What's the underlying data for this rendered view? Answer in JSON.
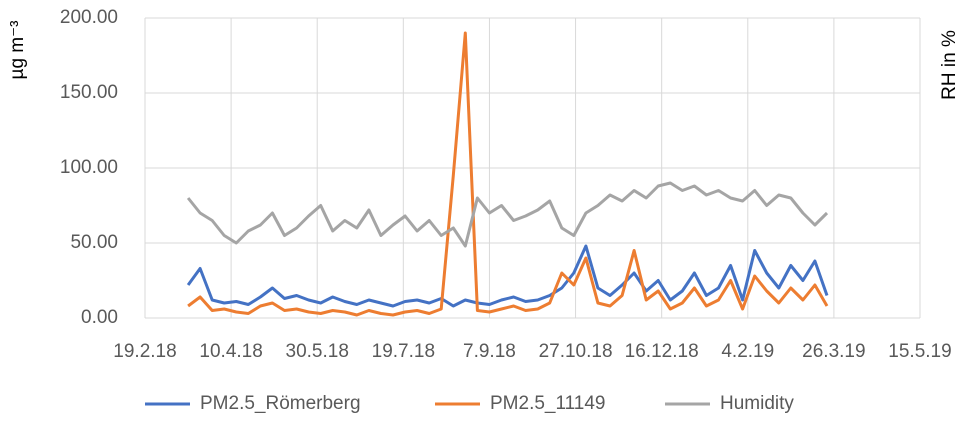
{
  "chart_data": {
    "type": "line",
    "y_label": "µg m⁻³",
    "y2_label": "RH in %",
    "x": [
      "2018-03-16",
      "2018-03-23",
      "2018-03-30",
      "2018-04-06",
      "2018-04-13",
      "2018-04-20",
      "2018-04-27",
      "2018-05-04",
      "2018-05-11",
      "2018-05-18",
      "2018-05-25",
      "2018-06-01",
      "2018-06-08",
      "2018-06-15",
      "2018-06-22",
      "2018-06-29",
      "2018-07-06",
      "2018-07-13",
      "2018-07-20",
      "2018-07-27",
      "2018-08-03",
      "2018-08-10",
      "2018-08-17",
      "2018-08-24",
      "2018-08-31",
      "2018-09-07",
      "2018-09-14",
      "2018-09-21",
      "2018-09-28",
      "2018-10-05",
      "2018-10-12",
      "2018-10-19",
      "2018-10-26",
      "2018-11-02",
      "2018-11-09",
      "2018-11-16",
      "2018-11-23",
      "2018-11-30",
      "2018-12-07",
      "2018-12-14",
      "2018-12-21",
      "2018-12-28",
      "2019-01-04",
      "2019-01-11",
      "2019-01-18",
      "2019-01-25",
      "2019-02-01",
      "2019-02-08",
      "2019-02-15",
      "2019-02-22",
      "2019-03-01",
      "2019-03-08",
      "2019-03-15",
      "2019-03-22"
    ],
    "series": [
      {
        "name": "PM2.5_Römerberg",
        "color": "#4472c4",
        "values": [
          22,
          33,
          12,
          10,
          11,
          9,
          14,
          20,
          13,
          15,
          12,
          10,
          14,
          11,
          9,
          12,
          10,
          8,
          11,
          12,
          10,
          13,
          8,
          12,
          10,
          9,
          12,
          14,
          11,
          12,
          15,
          20,
          30,
          48,
          20,
          15,
          22,
          30,
          18,
          25,
          12,
          18,
          30,
          15,
          20,
          35,
          12,
          45,
          30,
          20,
          35,
          25,
          38,
          15
        ]
      },
      {
        "name": "PM2.5_11149",
        "color": "#ed7d31",
        "values": [
          8,
          14,
          5,
          6,
          4,
          3,
          8,
          10,
          5,
          6,
          4,
          3,
          5,
          4,
          2,
          5,
          3,
          2,
          4,
          5,
          3,
          6,
          95,
          190,
          5,
          4,
          6,
          8,
          5,
          6,
          10,
          30,
          22,
          40,
          10,
          8,
          15,
          45,
          12,
          18,
          6,
          10,
          20,
          8,
          12,
          25,
          6,
          28,
          18,
          10,
          20,
          12,
          22,
          8
        ]
      },
      {
        "name": "Humidity",
        "color": "#a5a5a5",
        "values": [
          80,
          70,
          65,
          55,
          50,
          58,
          62,
          70,
          55,
          60,
          68,
          75,
          58,
          65,
          60,
          72,
          55,
          62,
          68,
          58,
          65,
          55,
          60,
          48,
          80,
          70,
          75,
          65,
          68,
          72,
          78,
          60,
          55,
          70,
          75,
          82,
          78,
          85,
          80,
          88,
          90,
          85,
          88,
          82,
          85,
          80,
          78,
          85,
          75,
          82,
          80,
          70,
          62,
          70
        ]
      }
    ],
    "xlim": [
      "2018-02-19",
      "2019-05-15"
    ],
    "xticks": [
      {
        "value": "2018-02-19",
        "label": "19.2.18"
      },
      {
        "value": "2018-04-10",
        "label": "10.4.18"
      },
      {
        "value": "2018-05-30",
        "label": "30.5.18"
      },
      {
        "value": "2018-07-19",
        "label": "19.7.18"
      },
      {
        "value": "2018-09-07",
        "label": "7.9.18"
      },
      {
        "value": "2018-10-27",
        "label": "27.10.18"
      },
      {
        "value": "2018-12-16",
        "label": "16.12.18"
      },
      {
        "value": "2019-02-04",
        "label": "4.2.19"
      },
      {
        "value": "2019-03-26",
        "label": "26.3.19"
      },
      {
        "value": "2019-05-15",
        "label": "15.5.19"
      }
    ],
    "ylim": [
      0,
      200
    ],
    "yticks": [
      {
        "value": 0,
        "label": "0.00"
      },
      {
        "value": 50,
        "label": "50.00"
      },
      {
        "value": 100,
        "label": "100.00"
      },
      {
        "value": 150,
        "label": "150.00"
      },
      {
        "value": 200,
        "label": "200.00"
      }
    ],
    "grid": true
  }
}
